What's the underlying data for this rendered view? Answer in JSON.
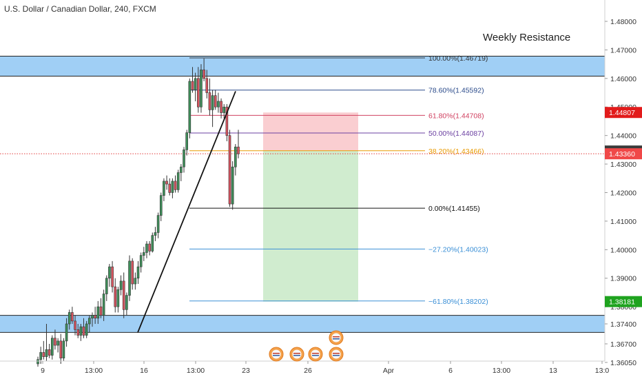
{
  "title": "U.S. Dollar / Canadian Dollar, 240, FXCM",
  "chart_data": {
    "type": "candlestick",
    "title": "U.S. Dollar / Canadian Dollar, 240, FXCM",
    "ylim": [
      1.359,
      1.486
    ],
    "y_ticks": [
      "1.48000",
      "1.47000",
      "1.46000",
      "1.45000",
      "1.44000",
      "1.43000",
      "1.42000",
      "1.41000",
      "1.40000",
      "1.39000",
      "1.38000",
      "1.37400",
      "1.36700",
      "1.36050"
    ],
    "x_ticks": [
      "9",
      "13:00",
      "16",
      "13:00",
      "23",
      "26",
      "Apr",
      "6",
      "13:00",
      "13",
      "13:0"
    ],
    "annotation": "Weekly Resistance",
    "zones": [
      {
        "from": 1.4608,
        "to": 1.4678
      },
      {
        "from": 1.371,
        "to": 1.377
      }
    ],
    "fib_levels": [
      {
        "label": "100.00%(1.46719)",
        "value": 1.46719,
        "color": "#333333"
      },
      {
        "label": "78.60%(1.45592)",
        "value": 1.45592,
        "color": "#2a4a8a"
      },
      {
        "label": "61.80%(1.44708)",
        "value": 1.44708,
        "color": "#d04060"
      },
      {
        "label": "50.00%(1.44087)",
        "value": 1.44087,
        "color": "#6a3fa0"
      },
      {
        "label": "38.20%(1.43466)",
        "value": 1.43466,
        "color": "#e89a00"
      },
      {
        "label": "0.00%(1.41455)",
        "value": 1.41455,
        "color": "#111111"
      },
      {
        "label": "−27.20%(1.40023)",
        "value": 1.40023,
        "color": "#3a8fd6"
      },
      {
        "label": "−61.80%(1.38202)",
        "value": 1.38202,
        "color": "#3a8fd6"
      }
    ],
    "price_badges": [
      {
        "label": "1.44807",
        "value": 1.44807,
        "color": "#e21b1b"
      },
      {
        "label": "1.43457",
        "value": 1.43457,
        "color": "#3b3b3b"
      },
      {
        "label": "1.43360",
        "value": 1.4336,
        "color": "#f04848"
      },
      {
        "label": "1.38181",
        "value": 1.38181,
        "color": "#1fa31f"
      }
    ],
    "current_price": 1.4336,
    "short_position": {
      "entry": 1.43466,
      "stop": 1.44807,
      "target": 1.38181
    },
    "trendline": {
      "from": 1.371,
      "to": 1.4555
    },
    "candles": [
      {
        "o": 1.36,
        "h": 1.3625,
        "l": 1.359,
        "c": 1.3615
      },
      {
        "o": 1.3615,
        "h": 1.366,
        "l": 1.36,
        "c": 1.364
      },
      {
        "o": 1.364,
        "h": 1.368,
        "l": 1.3615,
        "c": 1.3625
      },
      {
        "o": 1.3625,
        "h": 1.374,
        "l": 1.361,
        "c": 1.365
      },
      {
        "o": 1.365,
        "h": 1.367,
        "l": 1.362,
        "c": 1.363
      },
      {
        "o": 1.363,
        "h": 1.37,
        "l": 1.3615,
        "c": 1.369
      },
      {
        "o": 1.369,
        "h": 1.372,
        "l": 1.365,
        "c": 1.3665
      },
      {
        "o": 1.3665,
        "h": 1.369,
        "l": 1.364,
        "c": 1.368
      },
      {
        "o": 1.368,
        "h": 1.3705,
        "l": 1.36,
        "c": 1.362
      },
      {
        "o": 1.362,
        "h": 1.369,
        "l": 1.361,
        "c": 1.368
      },
      {
        "o": 1.368,
        "h": 1.376,
        "l": 1.366,
        "c": 1.374
      },
      {
        "o": 1.374,
        "h": 1.379,
        "l": 1.372,
        "c": 1.378
      },
      {
        "o": 1.378,
        "h": 1.38,
        "l": 1.374,
        "c": 1.375
      },
      {
        "o": 1.375,
        "h": 1.377,
        "l": 1.37,
        "c": 1.372
      },
      {
        "o": 1.372,
        "h": 1.374,
        "l": 1.369,
        "c": 1.37
      },
      {
        "o": 1.37,
        "h": 1.374,
        "l": 1.368,
        "c": 1.373
      },
      {
        "o": 1.373,
        "h": 1.376,
        "l": 1.369,
        "c": 1.37
      },
      {
        "o": 1.37,
        "h": 1.375,
        "l": 1.369,
        "c": 1.374
      },
      {
        "o": 1.374,
        "h": 1.377,
        "l": 1.371,
        "c": 1.376
      },
      {
        "o": 1.376,
        "h": 1.378,
        "l": 1.373,
        "c": 1.377
      },
      {
        "o": 1.377,
        "h": 1.38,
        "l": 1.374,
        "c": 1.376
      },
      {
        "o": 1.376,
        "h": 1.382,
        "l": 1.374,
        "c": 1.38
      },
      {
        "o": 1.38,
        "h": 1.383,
        "l": 1.376,
        "c": 1.377
      },
      {
        "o": 1.377,
        "h": 1.386,
        "l": 1.375,
        "c": 1.3845
      },
      {
        "o": 1.3845,
        "h": 1.391,
        "l": 1.382,
        "c": 1.39
      },
      {
        "o": 1.39,
        "h": 1.395,
        "l": 1.387,
        "c": 1.394
      },
      {
        "o": 1.394,
        "h": 1.396,
        "l": 1.385,
        "c": 1.387
      },
      {
        "o": 1.387,
        "h": 1.39,
        "l": 1.378,
        "c": 1.38
      },
      {
        "o": 1.38,
        "h": 1.387,
        "l": 1.378,
        "c": 1.386
      },
      {
        "o": 1.386,
        "h": 1.391,
        "l": 1.384,
        "c": 1.389
      },
      {
        "o": 1.389,
        "h": 1.392,
        "l": 1.376,
        "c": 1.379
      },
      {
        "o": 1.379,
        "h": 1.385,
        "l": 1.377,
        "c": 1.384
      },
      {
        "o": 1.384,
        "h": 1.398,
        "l": 1.382,
        "c": 1.396
      },
      {
        "o": 1.396,
        "h": 1.397,
        "l": 1.386,
        "c": 1.388
      },
      {
        "o": 1.388,
        "h": 1.392,
        "l": 1.386,
        "c": 1.39
      },
      {
        "o": 1.39,
        "h": 1.396,
        "l": 1.388,
        "c": 1.394
      },
      {
        "o": 1.394,
        "h": 1.399,
        "l": 1.392,
        "c": 1.398
      },
      {
        "o": 1.398,
        "h": 1.401,
        "l": 1.396,
        "c": 1.399
      },
      {
        "o": 1.399,
        "h": 1.403,
        "l": 1.397,
        "c": 1.402
      },
      {
        "o": 1.402,
        "h": 1.403,
        "l": 1.398,
        "c": 1.3995
      },
      {
        "o": 1.3995,
        "h": 1.406,
        "l": 1.399,
        "c": 1.405
      },
      {
        "o": 1.405,
        "h": 1.408,
        "l": 1.403,
        "c": 1.406
      },
      {
        "o": 1.406,
        "h": 1.413,
        "l": 1.404,
        "c": 1.412
      },
      {
        "o": 1.412,
        "h": 1.42,
        "l": 1.41,
        "c": 1.419
      },
      {
        "o": 1.419,
        "h": 1.425,
        "l": 1.417,
        "c": 1.424
      },
      {
        "o": 1.424,
        "h": 1.426,
        "l": 1.421,
        "c": 1.423
      },
      {
        "o": 1.423,
        "h": 1.425,
        "l": 1.419,
        "c": 1.42
      },
      {
        "o": 1.42,
        "h": 1.425,
        "l": 1.418,
        "c": 1.424
      },
      {
        "o": 1.424,
        "h": 1.426,
        "l": 1.42,
        "c": 1.421
      },
      {
        "o": 1.421,
        "h": 1.428,
        "l": 1.42,
        "c": 1.427
      },
      {
        "o": 1.427,
        "h": 1.43,
        "l": 1.424,
        "c": 1.429
      },
      {
        "o": 1.429,
        "h": 1.436,
        "l": 1.427,
        "c": 1.435
      },
      {
        "o": 1.435,
        "h": 1.442,
        "l": 1.433,
        "c": 1.441
      },
      {
        "o": 1.441,
        "h": 1.46,
        "l": 1.439,
        "c": 1.459
      },
      {
        "o": 1.459,
        "h": 1.464,
        "l": 1.455,
        "c": 1.456
      },
      {
        "o": 1.456,
        "h": 1.462,
        "l": 1.452,
        "c": 1.46
      },
      {
        "o": 1.46,
        "h": 1.464,
        "l": 1.448,
        "c": 1.45
      },
      {
        "o": 1.45,
        "h": 1.465,
        "l": 1.448,
        "c": 1.463
      },
      {
        "o": 1.463,
        "h": 1.467,
        "l": 1.459,
        "c": 1.46
      },
      {
        "o": 1.46,
        "h": 1.463,
        "l": 1.453,
        "c": 1.455
      },
      {
        "o": 1.455,
        "h": 1.46,
        "l": 1.447,
        "c": 1.449
      },
      {
        "o": 1.449,
        "h": 1.456,
        "l": 1.443,
        "c": 1.454
      },
      {
        "o": 1.454,
        "h": 1.456,
        "l": 1.449,
        "c": 1.45
      },
      {
        "o": 1.45,
        "h": 1.455,
        "l": 1.448,
        "c": 1.452
      },
      {
        "o": 1.452,
        "h": 1.453,
        "l": 1.446,
        "c": 1.448
      },
      {
        "o": 1.448,
        "h": 1.451,
        "l": 1.446,
        "c": 1.45
      },
      {
        "o": 1.45,
        "h": 1.451,
        "l": 1.438,
        "c": 1.44
      },
      {
        "o": 1.44,
        "h": 1.442,
        "l": 1.415,
        "c": 1.416
      },
      {
        "o": 1.416,
        "h": 1.431,
        "l": 1.414,
        "c": 1.429
      },
      {
        "o": 1.429,
        "h": 1.437,
        "l": 1.426,
        "c": 1.436
      },
      {
        "o": 1.436,
        "h": 1.442,
        "l": 1.432,
        "c": 1.4336
      }
    ]
  }
}
